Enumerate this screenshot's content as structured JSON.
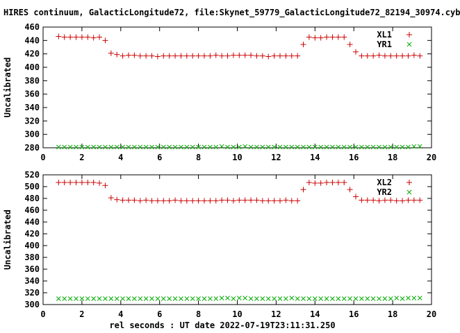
{
  "title": "HIRES continuum, GalacticLongitude72, file:Skynet_59779_GalacticLongitude72_82194_30974.cyb",
  "xlabel": "rel seconds : UT date 2022-07-19T23:11:31.250",
  "chart_data": [
    {
      "type": "scatter",
      "ylabel": "Uncalibrated",
      "xlim": [
        0,
        20
      ],
      "ylim": [
        280,
        460
      ],
      "xticks": [
        0,
        2,
        4,
        6,
        8,
        10,
        12,
        14,
        16,
        18,
        20
      ],
      "yticks": [
        280,
        300,
        320,
        340,
        360,
        380,
        400,
        420,
        440,
        460
      ],
      "legend_position": "top-right",
      "grid": false,
      "series": [
        {
          "name": "XL1",
          "marker": "plus",
          "color": "#cc0000",
          "x": [
            0.8,
            1.1,
            1.4,
            1.7,
            2.0,
            2.3,
            2.6,
            2.9,
            3.2,
            3.5,
            3.8,
            4.1,
            4.4,
            4.7,
            5.0,
            5.3,
            5.6,
            5.9,
            6.2,
            6.5,
            6.8,
            7.1,
            7.4,
            7.7,
            8.0,
            8.3,
            8.6,
            8.9,
            9.2,
            9.5,
            9.8,
            10.1,
            10.4,
            10.7,
            11.0,
            11.3,
            11.6,
            11.9,
            12.2,
            12.5,
            12.8,
            13.1,
            13.4,
            13.7,
            14.0,
            14.3,
            14.6,
            14.9,
            15.2,
            15.5,
            15.8,
            16.1,
            16.4,
            16.7,
            17.0,
            17.3,
            17.6,
            17.9,
            18.2,
            18.5,
            18.8,
            19.1,
            19.4
          ],
          "y": [
            446,
            445,
            445,
            445,
            445,
            445,
            444,
            445,
            440,
            421,
            419,
            417,
            418,
            418,
            417,
            417,
            417,
            416,
            417,
            417,
            417,
            417,
            417,
            417,
            417,
            417,
            417,
            418,
            417,
            417,
            418,
            418,
            418,
            418,
            417,
            417,
            416,
            417,
            417,
            417,
            417,
            417,
            434,
            445,
            444,
            444,
            445,
            445,
            445,
            445,
            434,
            423,
            417,
            417,
            417,
            418,
            417,
            417,
            417,
            417,
            417,
            418,
            417
          ]
        },
        {
          "name": "YR1",
          "marker": "cross",
          "color": "#00aa00",
          "x": [
            0.8,
            1.1,
            1.4,
            1.7,
            2.0,
            2.3,
            2.6,
            2.9,
            3.2,
            3.5,
            3.8,
            4.1,
            4.4,
            4.7,
            5.0,
            5.3,
            5.6,
            5.9,
            6.2,
            6.5,
            6.8,
            7.1,
            7.4,
            7.7,
            8.0,
            8.3,
            8.6,
            8.9,
            9.2,
            9.5,
            9.8,
            10.1,
            10.4,
            10.7,
            11.0,
            11.3,
            11.6,
            11.9,
            12.2,
            12.5,
            12.8,
            13.1,
            13.4,
            13.7,
            14.0,
            14.3,
            14.6,
            14.9,
            15.2,
            15.5,
            15.8,
            16.1,
            16.4,
            16.7,
            17.0,
            17.3,
            17.6,
            17.9,
            18.2,
            18.5,
            18.8,
            19.1,
            19.4
          ],
          "y": [
            281,
            281,
            281,
            281,
            281,
            281,
            281,
            281,
            281,
            281,
            281,
            281,
            281,
            281,
            281,
            281,
            281,
            281,
            281,
            281,
            281,
            281,
            281,
            281,
            281,
            281,
            281,
            281,
            282,
            281,
            281,
            281,
            282,
            281,
            281,
            281,
            281,
            281,
            281,
            281,
            281,
            281,
            281,
            281,
            281,
            281,
            281,
            281,
            281,
            281,
            281,
            281,
            281,
            281,
            281,
            281,
            281,
            281,
            281,
            281,
            281,
            282,
            282
          ]
        }
      ]
    },
    {
      "type": "scatter",
      "ylabel": "Uncalibrated",
      "xlim": [
        0,
        20
      ],
      "ylim": [
        300,
        520
      ],
      "xticks": [
        0,
        2,
        4,
        6,
        8,
        10,
        12,
        14,
        16,
        18,
        20
      ],
      "yticks": [
        300,
        320,
        340,
        360,
        380,
        400,
        420,
        440,
        460,
        480,
        500,
        520
      ],
      "legend_position": "top-right",
      "grid": false,
      "series": [
        {
          "name": "XL2",
          "marker": "plus",
          "color": "#cc0000",
          "x": [
            0.8,
            1.1,
            1.4,
            1.7,
            2.0,
            2.3,
            2.6,
            2.9,
            3.2,
            3.5,
            3.8,
            4.1,
            4.4,
            4.7,
            5.0,
            5.3,
            5.6,
            5.9,
            6.2,
            6.5,
            6.8,
            7.1,
            7.4,
            7.7,
            8.0,
            8.3,
            8.6,
            8.9,
            9.2,
            9.5,
            9.8,
            10.1,
            10.4,
            10.7,
            11.0,
            11.3,
            11.6,
            11.9,
            12.2,
            12.5,
            12.8,
            13.1,
            13.4,
            13.7,
            14.0,
            14.3,
            14.6,
            14.9,
            15.2,
            15.5,
            15.8,
            16.1,
            16.4,
            16.7,
            17.0,
            17.3,
            17.6,
            17.9,
            18.2,
            18.5,
            18.8,
            19.1,
            19.4
          ],
          "y": [
            507,
            507,
            507,
            507,
            507,
            507,
            507,
            506,
            502,
            481,
            478,
            477,
            477,
            477,
            476,
            477,
            476,
            476,
            476,
            476,
            477,
            476,
            476,
            476,
            476,
            476,
            476,
            476,
            477,
            477,
            476,
            477,
            477,
            477,
            477,
            476,
            476,
            476,
            476,
            477,
            476,
            476,
            495,
            507,
            506,
            506,
            507,
            507,
            507,
            507,
            495,
            483,
            477,
            477,
            477,
            476,
            477,
            477,
            476,
            476,
            477,
            477,
            477
          ]
        },
        {
          "name": "YR2",
          "marker": "cross",
          "color": "#00aa00",
          "x": [
            0.8,
            1.1,
            1.4,
            1.7,
            2.0,
            2.3,
            2.6,
            2.9,
            3.2,
            3.5,
            3.8,
            4.1,
            4.4,
            4.7,
            5.0,
            5.3,
            5.6,
            5.9,
            6.2,
            6.5,
            6.8,
            7.1,
            7.4,
            7.7,
            8.0,
            8.3,
            8.6,
            8.9,
            9.2,
            9.5,
            9.8,
            10.1,
            10.4,
            10.7,
            11.0,
            11.3,
            11.6,
            11.9,
            12.2,
            12.5,
            12.8,
            13.1,
            13.4,
            13.7,
            14.0,
            14.3,
            14.6,
            14.9,
            15.2,
            15.5,
            15.8,
            16.1,
            16.4,
            16.7,
            17.0,
            17.3,
            17.6,
            17.9,
            18.2,
            18.5,
            18.8,
            19.1,
            19.4
          ],
          "y": [
            310,
            310,
            310,
            310,
            310,
            310,
            310,
            310,
            310,
            310,
            310,
            310,
            310,
            310,
            310,
            310,
            310,
            310,
            310,
            310,
            310,
            310,
            310,
            310,
            310,
            310,
            310,
            310,
            311,
            311,
            310,
            311,
            311,
            310,
            310,
            310,
            310,
            310,
            310,
            310,
            311,
            310,
            310,
            310,
            310,
            310,
            310,
            310,
            310,
            310,
            310,
            310,
            310,
            310,
            310,
            310,
            310,
            310,
            311,
            310,
            311,
            311,
            311
          ]
        }
      ]
    }
  ]
}
